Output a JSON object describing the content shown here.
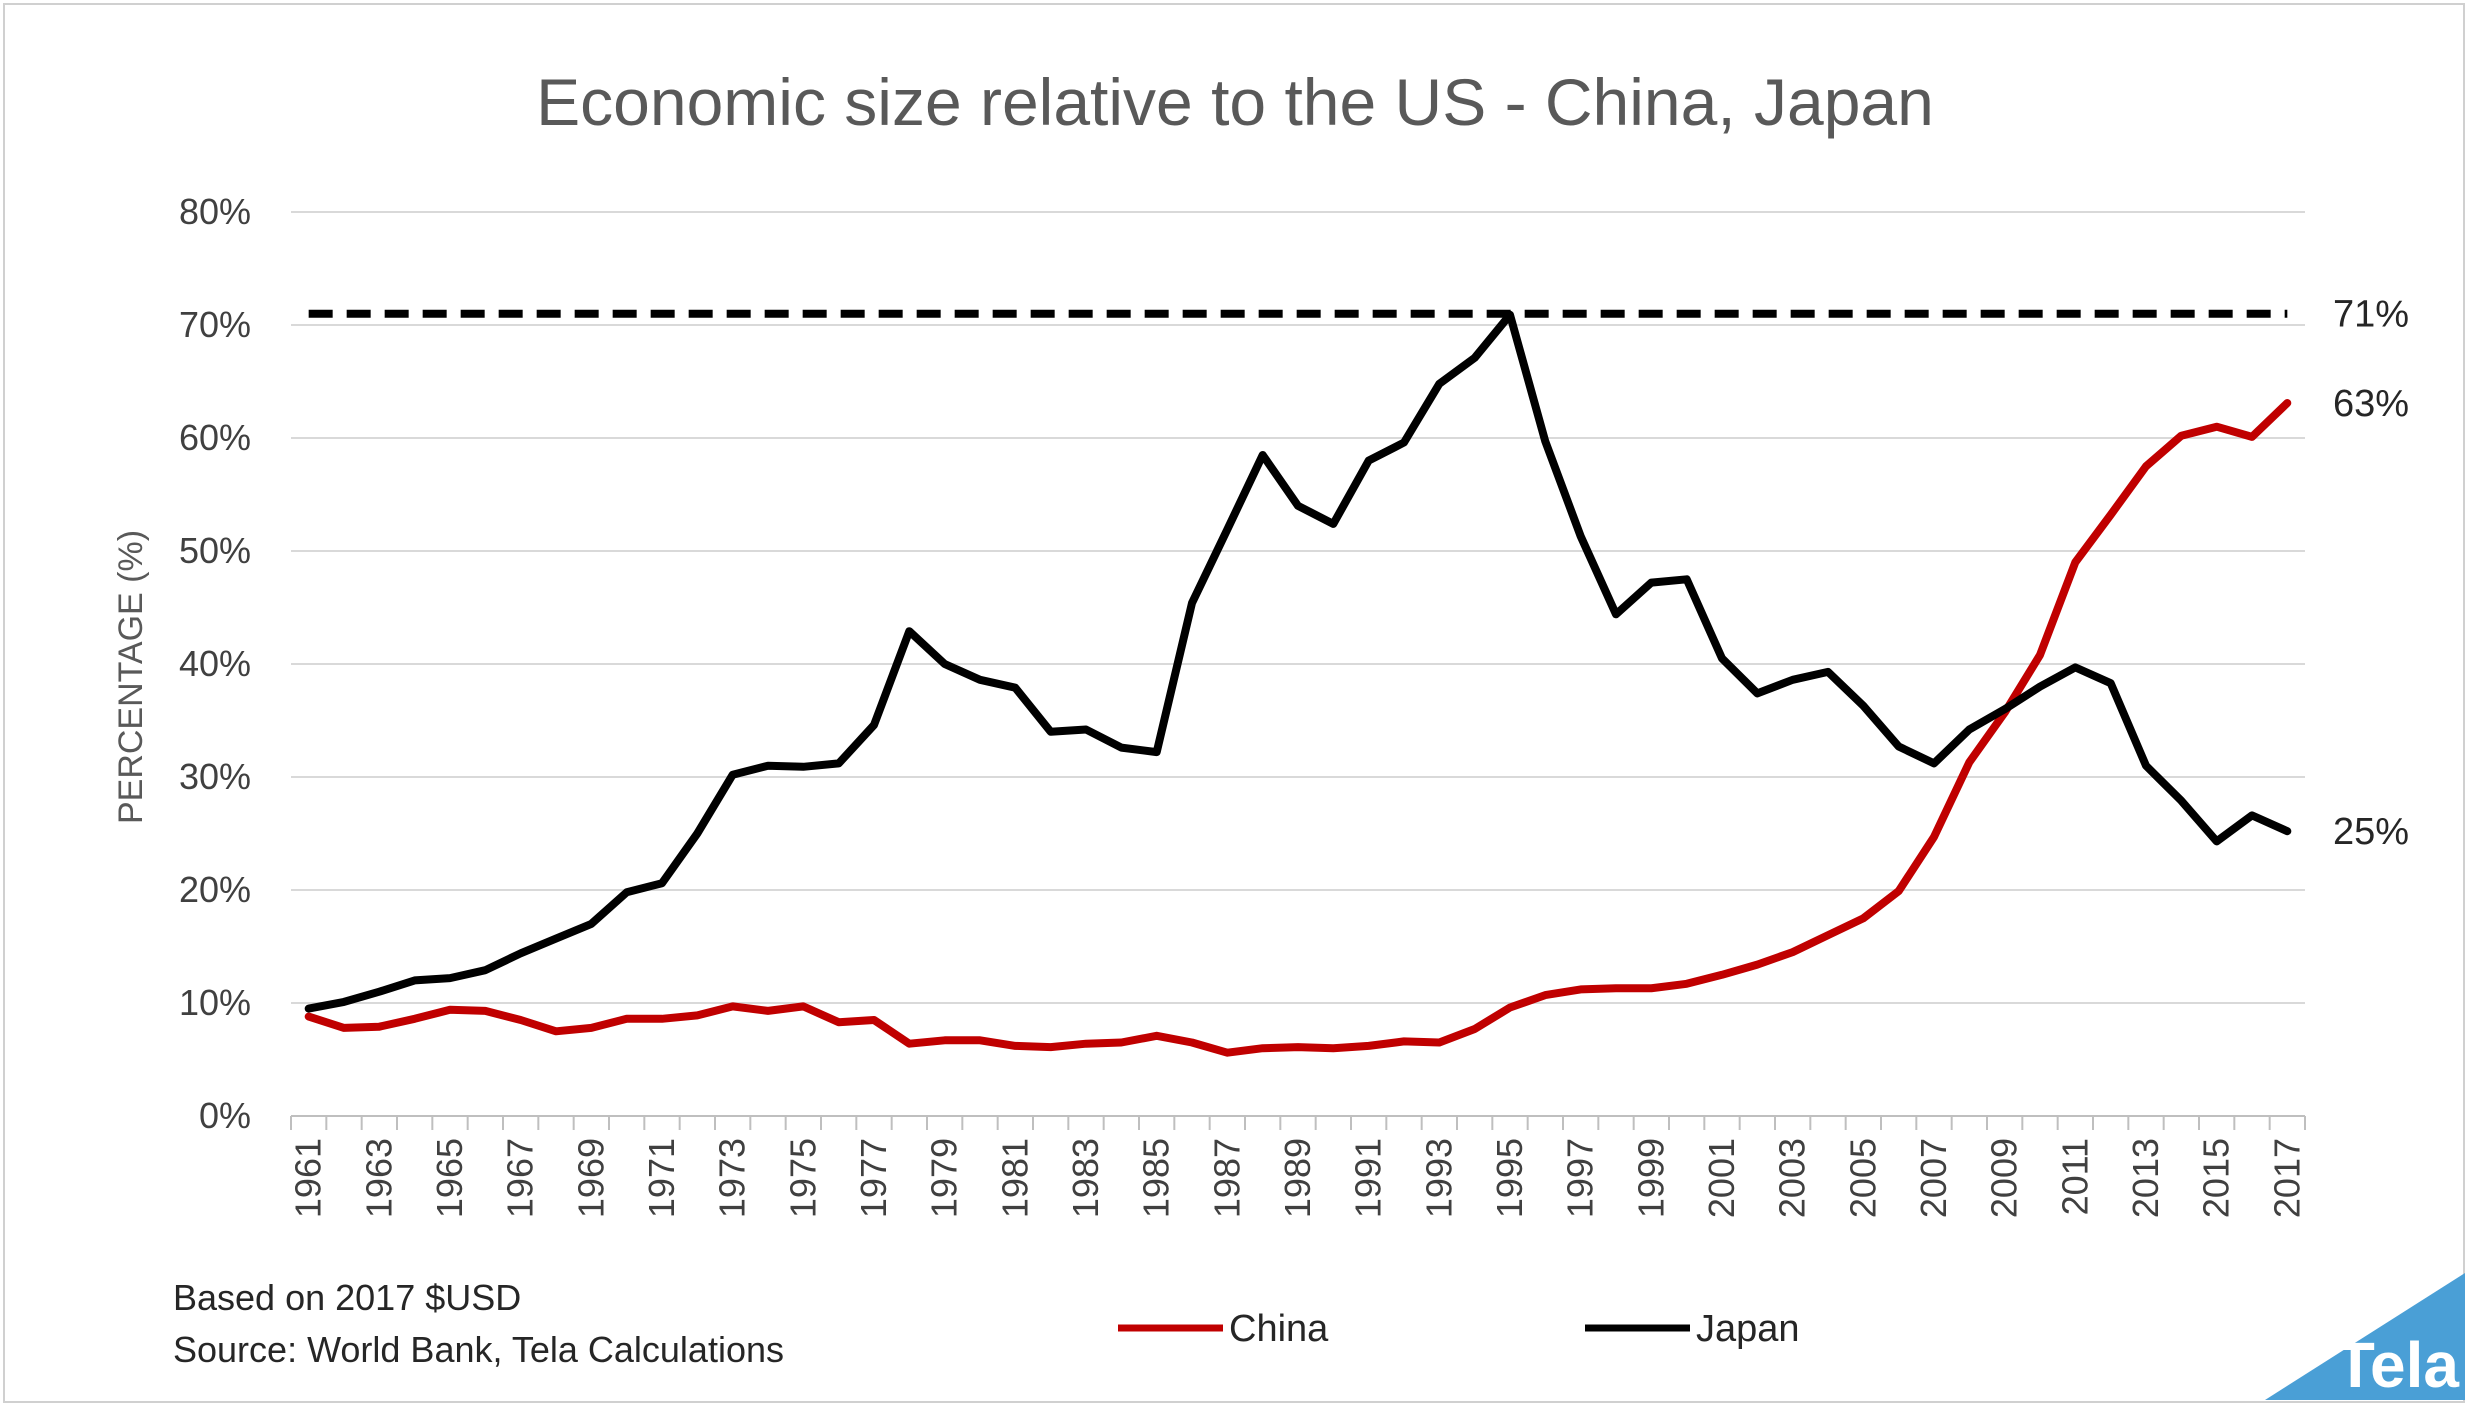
{
  "chart_data": {
    "type": "line",
    "title": "Economic size relative to the US - China, Japan",
    "xlabel": "",
    "ylabel": "PERCENTAGE (%)",
    "ylim": [
      0,
      80
    ],
    "yticks": [
      "0%",
      "10%",
      "20%",
      "30%",
      "40%",
      "50%",
      "60%",
      "70%",
      "80%"
    ],
    "grid": true,
    "legend_position": "bottom-center",
    "categories": [
      1961,
      1962,
      1963,
      1964,
      1965,
      1966,
      1967,
      1968,
      1969,
      1970,
      1971,
      1972,
      1973,
      1974,
      1975,
      1976,
      1977,
      1978,
      1979,
      1980,
      1981,
      1982,
      1983,
      1984,
      1985,
      1986,
      1987,
      1988,
      1989,
      1990,
      1991,
      1992,
      1993,
      1994,
      1995,
      1996,
      1997,
      1998,
      1999,
      2000,
      2001,
      2002,
      2003,
      2004,
      2005,
      2006,
      2007,
      2008,
      2009,
      2010,
      2011,
      2012,
      2013,
      2014,
      2015,
      2016,
      2017
    ],
    "xtick_labels": [
      "1961",
      "1963",
      "1965",
      "1967",
      "1969",
      "1971",
      "1973",
      "1975",
      "1977",
      "1979",
      "1981",
      "1983",
      "1985",
      "1987",
      "1989",
      "1991",
      "1993",
      "1995",
      "1997",
      "1999",
      "2001",
      "2003",
      "2005",
      "2007",
      "2009",
      "2011",
      "2013",
      "2015",
      "2017"
    ],
    "series": [
      {
        "name": "China",
        "color": "#c00000",
        "values": [
          8.8,
          7.8,
          7.9,
          8.6,
          9.4,
          9.3,
          8.5,
          7.5,
          7.8,
          8.6,
          8.6,
          8.9,
          9.7,
          9.3,
          9.7,
          8.3,
          8.5,
          6.4,
          6.7,
          6.7,
          6.2,
          6.1,
          6.4,
          6.5,
          7.1,
          6.5,
          5.6,
          6.0,
          6.1,
          6.0,
          6.2,
          6.6,
          6.5,
          7.7,
          9.6,
          10.7,
          11.2,
          11.3,
          11.3,
          11.7,
          12.5,
          13.4,
          14.5,
          16.0,
          17.5,
          19.9,
          24.7,
          31.3,
          35.7,
          40.8,
          49.0,
          53.2,
          57.5,
          60.2,
          61.0,
          60.1,
          63.1
        ]
      },
      {
        "name": "Japan",
        "color": "#000000",
        "values": [
          9.5,
          10.1,
          11.0,
          12.0,
          12.2,
          12.9,
          14.4,
          15.7,
          17.0,
          19.8,
          20.6,
          25.0,
          30.2,
          31.0,
          30.9,
          31.2,
          34.6,
          42.9,
          40.0,
          38.6,
          37.9,
          34.0,
          34.2,
          32.6,
          32.2,
          45.4,
          51.9,
          58.5,
          54.0,
          52.4,
          58.0,
          59.6,
          64.8,
          67.1,
          70.9,
          59.7,
          51.3,
          44.4,
          47.2,
          47.5,
          40.5,
          37.4,
          38.6,
          39.3,
          36.3,
          32.7,
          31.2,
          34.2,
          36.0,
          38.0,
          39.7,
          38.3,
          31.0,
          27.9,
          24.3,
          26.6,
          25.2
        ]
      },
      {
        "name": "",
        "style": "dashed",
        "color": "#000000",
        "values_constant": 71
      }
    ],
    "annotations": [
      {
        "text": "71%",
        "value": 71
      },
      {
        "text": "63%",
        "value": 63.1
      },
      {
        "text": "25%",
        "value": 25.2
      }
    ]
  },
  "notes": {
    "line1": "Based on 2017 $USD",
    "line2": "Source: World Bank, Tela Calculations"
  },
  "logo": {
    "text": "Tela",
    "color": "#4a9fd6"
  }
}
